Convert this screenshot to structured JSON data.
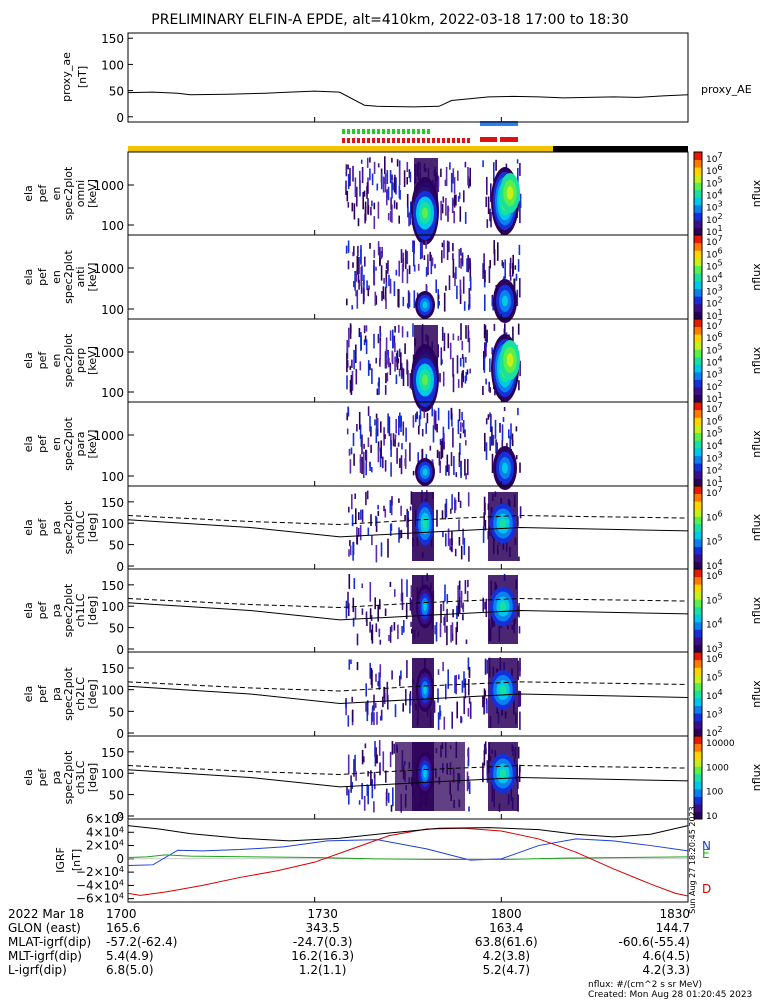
{
  "title": "PRELIMINARY ELFIN-A EPDE, alt=410km, 2022-03-18 17:00 to 18:30",
  "colors": {
    "axis": "#000000",
    "spacecraft_phase_bar": "#f2c200",
    "dark_phase_bar": "#000000",
    "ifgr_blue": "#2b7ff2",
    "ifgr_green": "#22cc22",
    "ifgr_red": "#dd1111",
    "field_N": "#1b3fd6",
    "field_E": "#1aa31a",
    "field_D": "#d40000",
    "field_total": "#000000"
  },
  "chart_data": [
    {
      "type": "line",
      "panel": "proxy_ae",
      "ylabel": [
        "proxy_ae",
        "[nT]"
      ],
      "yticks": [
        "150",
        "100",
        "50",
        "0"
      ],
      "ylim": [
        -10,
        160
      ],
      "legend": "proxy_AE",
      "series": [
        {
          "name": "proxy_AE",
          "x": [
            0,
            4,
            8,
            10,
            16,
            22,
            26,
            30,
            34,
            38,
            40,
            46,
            50,
            52,
            58,
            62,
            66,
            70,
            74,
            78,
            82,
            86,
            90
          ],
          "values": [
            46,
            47,
            45,
            42,
            43,
            45,
            47,
            49,
            47,
            22,
            20,
            19,
            20,
            31,
            38,
            39,
            38,
            36,
            37,
            38,
            37,
            40,
            42
          ]
        }
      ]
    },
    {
      "type": "heatmap",
      "panel": "spec2plot omni",
      "ylabel": [
        "ela",
        "pef",
        "en",
        "spec2plot",
        "omni",
        "[keV]"
      ],
      "yticks": [
        "1000",
        "100"
      ],
      "colorbar_label": "nflux",
      "colorbar_ticks": [
        "10^7",
        "10^6",
        "10^5",
        "10^4",
        "10^3",
        "10^2",
        "10^1"
      ]
    },
    {
      "type": "heatmap",
      "panel": "spec2plot anti",
      "ylabel": [
        "ela",
        "pef",
        "en",
        "spec2plot",
        "anti",
        "[keV]"
      ],
      "yticks": [
        "1000",
        "100"
      ],
      "colorbar_label": "nflux",
      "colorbar_ticks": [
        "10^7",
        "10^6",
        "10^5",
        "10^4",
        "10^3",
        "10^2",
        "10^1"
      ]
    },
    {
      "type": "heatmap",
      "panel": "spec2plot perp",
      "ylabel": [
        "ela",
        "pef",
        "en",
        "spec2plot",
        "perp",
        "[keV]"
      ],
      "yticks": [
        "1000",
        "100"
      ],
      "colorbar_label": "nflux",
      "colorbar_ticks": [
        "10^7",
        "10^6",
        "10^5",
        "10^4",
        "10^3",
        "10^2",
        "10^1"
      ]
    },
    {
      "type": "heatmap",
      "panel": "spec2plot para",
      "ylabel": [
        "ela",
        "pef",
        "en",
        "spec2plot",
        "para",
        "[keV]"
      ],
      "yticks": [
        "1000",
        "100"
      ],
      "colorbar_label": "nflux",
      "colorbar_ticks": [
        "10^7",
        "10^6",
        "10^5",
        "10^4",
        "10^3",
        "10^2",
        "10^1"
      ]
    },
    {
      "type": "heatmap",
      "panel": "spec2plot ch0LC",
      "ylabel": [
        "ela",
        "pef",
        "pa",
        "spec2plot",
        "ch0LC",
        "[deg]"
      ],
      "yticks": [
        "150",
        "100",
        "50",
        "0"
      ],
      "colorbar_label": "nflux",
      "colorbar_ticks": [
        "10^7",
        "10^6",
        "10^5",
        "10^4"
      ]
    },
    {
      "type": "heatmap",
      "panel": "spec2plot ch1LC",
      "ylabel": [
        "ela",
        "pef",
        "pa",
        "spec2plot",
        "ch1LC",
        "[deg]"
      ],
      "yticks": [
        "150",
        "100",
        "50",
        "0"
      ],
      "colorbar_label": "nflux",
      "colorbar_ticks": [
        "10^6",
        "10^5",
        "10^4",
        "10^3"
      ]
    },
    {
      "type": "heatmap",
      "panel": "spec2plot ch2LC",
      "ylabel": [
        "ela",
        "pef",
        "pa",
        "spec2plot",
        "ch2LC",
        "[deg]"
      ],
      "yticks": [
        "150",
        "100",
        "50",
        "0"
      ],
      "colorbar_label": "nflux",
      "colorbar_ticks": [
        "10^6",
        "10^5",
        "10^4",
        "10^3",
        "10^2"
      ]
    },
    {
      "type": "heatmap",
      "panel": "spec2plot ch3LC",
      "ylabel": [
        "ela",
        "pef",
        "pa",
        "spec2plot",
        "ch3LC",
        "[deg]"
      ],
      "yticks": [
        "150",
        "100",
        "50",
        "0"
      ],
      "colorbar_label": "nflux",
      "colorbar_ticks": [
        "10000",
        "1000",
        "100",
        "10"
      ]
    },
    {
      "type": "line",
      "panel": "IGRF",
      "ylabel": [
        "IGRF",
        "[nT]"
      ],
      "yticks": [
        "6×10^4",
        "4×10^4",
        "2×10^4",
        "0",
        "−2×10^4",
        "−4×10^4",
        "−6×10^4"
      ],
      "ylim": [
        -65000,
        60000
      ],
      "legend": [
        "N",
        "E",
        "D"
      ],
      "side_note": "Sun Aug 27 18:20:45 2023",
      "series": [
        {
          "name": "N",
          "x": [
            0,
            4,
            8,
            12,
            18,
            25,
            32,
            40,
            48,
            55,
            60,
            66,
            72,
            78,
            84,
            90
          ],
          "values": [
            -10000,
            -9000,
            13000,
            12000,
            14000,
            18000,
            27000,
            29000,
            15000,
            -2000,
            0,
            20000,
            30000,
            27000,
            20000,
            12000
          ]
        },
        {
          "name": "E",
          "x": [
            0,
            3,
            6,
            10,
            20,
            30,
            40,
            50,
            60,
            70,
            80,
            90
          ],
          "values": [
            2000,
            3000,
            6000,
            4000,
            3000,
            2000,
            0,
            -1000,
            -1000,
            1000,
            2000,
            3000
          ]
        },
        {
          "name": "D",
          "x": [
            0,
            2,
            6,
            12,
            18,
            24,
            30,
            36,
            42,
            48,
            54,
            60,
            66,
            72,
            78,
            84,
            88,
            90
          ],
          "values": [
            -52000,
            -55000,
            -50000,
            -40000,
            -28000,
            -18000,
            -5000,
            15000,
            35000,
            45000,
            46000,
            42000,
            30000,
            10000,
            -15000,
            -38000,
            -52000,
            -56000
          ]
        },
        {
          "name": "total",
          "x": [
            0,
            5,
            10,
            18,
            26,
            34,
            42,
            50,
            58,
            66,
            72,
            78,
            84,
            90
          ],
          "values": [
            50000,
            45000,
            38000,
            31000,
            27000,
            31000,
            39000,
            46000,
            47000,
            44000,
            37000,
            33000,
            37000,
            50000
          ]
        }
      ]
    }
  ],
  "x_axis": {
    "ticks": [
      "1700",
      "1730",
      "1800",
      "1830"
    ],
    "rows": [
      {
        "label": "2022 Mar 18",
        "values": [
          "1700",
          "1730",
          "1800",
          "1830"
        ]
      },
      {
        "label": "GLON (east)",
        "values": [
          "165.6",
          "343.5",
          "163.4",
          "144.7"
        ]
      },
      {
        "label": "MLAT-igrf(dip)",
        "values": [
          "-57.2(-62.4)",
          "-24.7(0.3)",
          "63.8(61.6)",
          "-60.6(-55.4)"
        ]
      },
      {
        "label": "MLT-igrf(dip)",
        "values": [
          "5.4(4.9)",
          "16.2(16.3)",
          "4.2(3.8)",
          "4.6(4.5)"
        ]
      },
      {
        "label": "L-igrf(dip)",
        "values": [
          "6.8(5.0)",
          "1.2(1.1)",
          "5.2(4.7)",
          "4.2(3.3)"
        ]
      }
    ]
  },
  "footer": {
    "units_note": "nflux: #/(cm^2 s sr MeV)",
    "created": "Created: Mon Aug 28 01:20:45 2023"
  }
}
